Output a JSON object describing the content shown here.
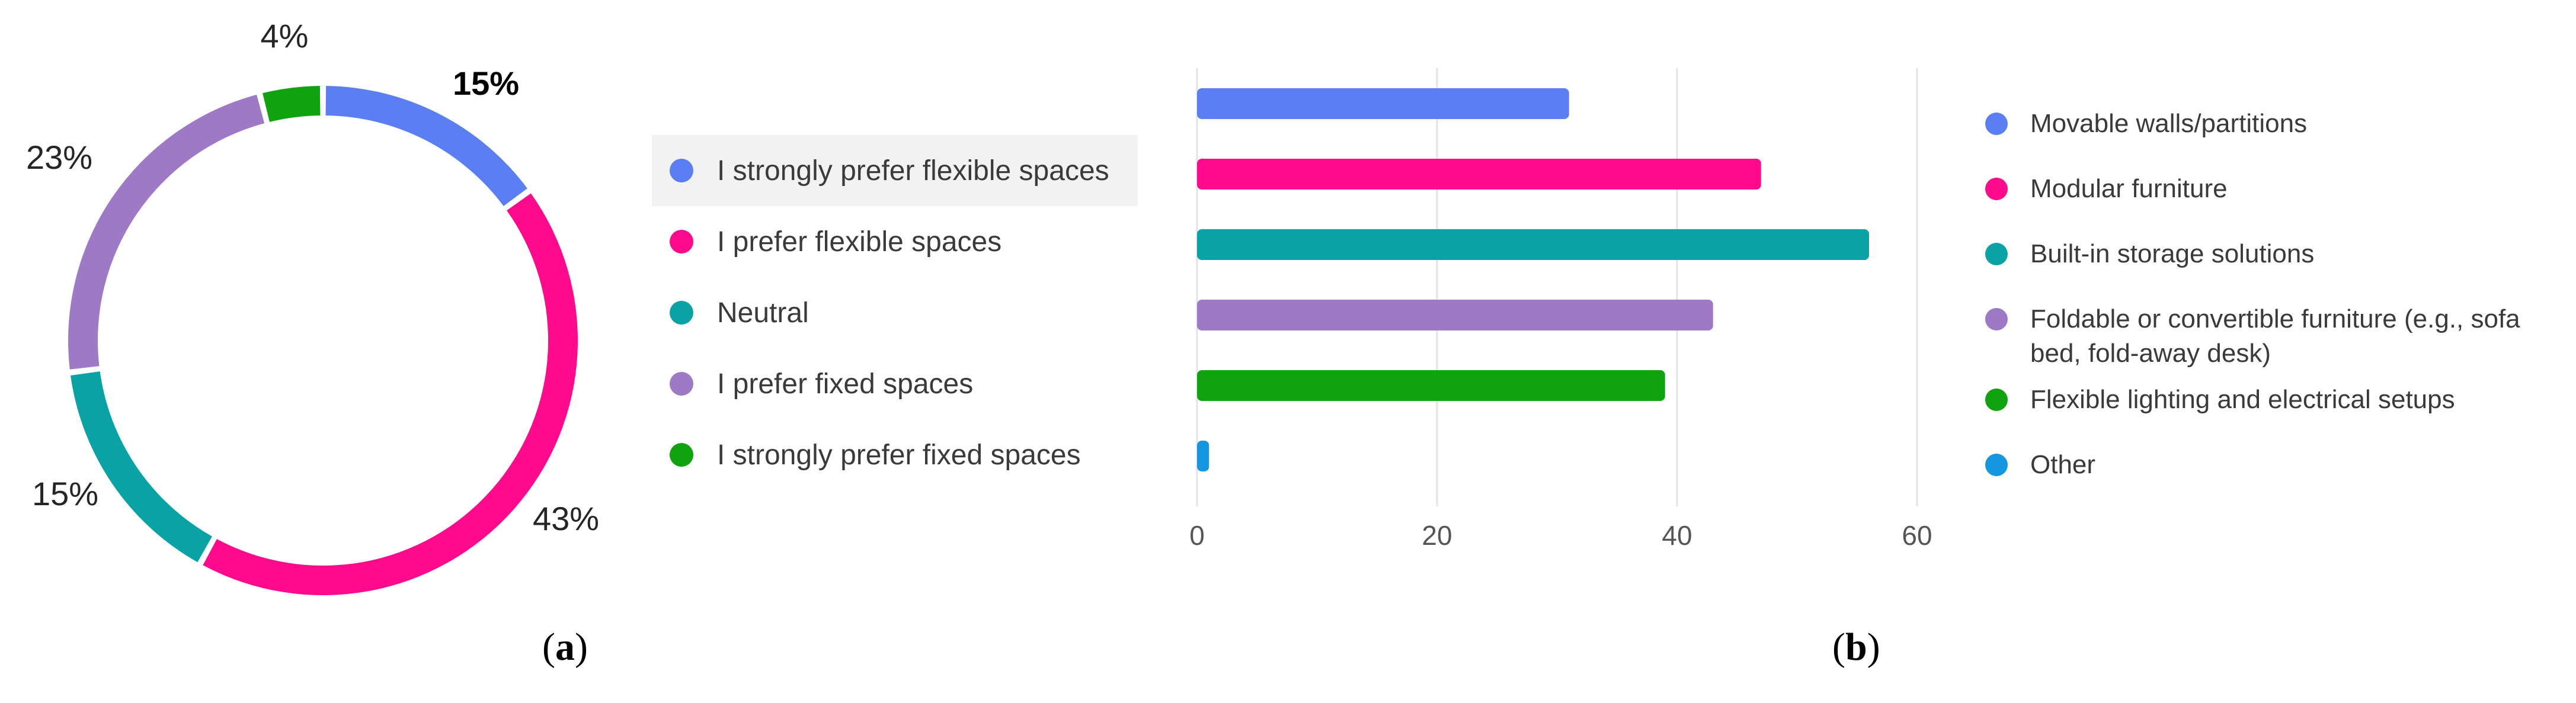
{
  "chart_data": [
    {
      "type": "pie",
      "donut": true,
      "slices": [
        {
          "label": "I strongly prefer flexible spaces",
          "value": 15,
          "display": "15%",
          "color": "#5b7ff2",
          "bold": true
        },
        {
          "label": "I prefer flexible spaces",
          "value": 43,
          "display": "43%",
          "color": "#ff0a8c",
          "bold": false
        },
        {
          "label": "Neutral",
          "value": 15,
          "display": "15%",
          "color": "#0aa3a5",
          "bold": false
        },
        {
          "label": "I prefer fixed spaces",
          "value": 23,
          "display": "23%",
          "color": "#9e79c6",
          "bold": false
        },
        {
          "label": "I strongly prefer fixed spaces",
          "value": 4,
          "display": "4%",
          "color": "#0fa30f",
          "bold": false
        }
      ],
      "legend_placement": "right",
      "caption": "(a)"
    },
    {
      "type": "bar",
      "orientation": "horizontal",
      "categories": [
        "Movable walls/partitions",
        "Modular furniture",
        "Built-in storage solutions",
        "Foldable or convertible furniture (e.g., sofa bed, fold-away desk)",
        "Flexible lighting and electrical setups",
        "Other"
      ],
      "values": [
        31,
        47,
        56,
        43,
        39,
        1
      ],
      "colors": [
        "#5b7ff2",
        "#ff0a8c",
        "#0aa3a5",
        "#9e79c6",
        "#0fa30f",
        "#1596e0"
      ],
      "xlim": [
        0,
        60
      ],
      "xticks": [
        0,
        20,
        40,
        60
      ],
      "grid": true,
      "legend_placement": "right",
      "caption": "(b)"
    }
  ],
  "legend_a": {
    "items": [
      {
        "label": "I strongly prefer flexible spaces",
        "color": "#5b7ff2"
      },
      {
        "label": "I prefer flexible spaces",
        "color": "#ff0a8c"
      },
      {
        "label": "Neutral",
        "color": "#0aa3a5"
      },
      {
        "label": "I prefer fixed spaces",
        "color": "#9e79c6"
      },
      {
        "label": "I strongly prefer fixed spaces",
        "color": "#0fa30f"
      }
    ]
  },
  "legend_b": {
    "items": [
      {
        "line1": "Movable walls/partitions",
        "line2": "",
        "color": "#5b7ff2"
      },
      {
        "line1": "Modular furniture",
        "line2": "",
        "color": "#ff0a8c"
      },
      {
        "line1": "Built-in storage solutions",
        "line2": "",
        "color": "#0aa3a5"
      },
      {
        "line1": "Foldable or convertible furniture (e.g., sofa",
        "line2": "bed, fold-away desk)",
        "color": "#9e79c6"
      },
      {
        "line1": "Flexible lighting and electrical setups",
        "line2": "",
        "color": "#0fa30f"
      },
      {
        "line1": "Other",
        "line2": "",
        "color": "#1596e0"
      }
    ]
  },
  "captions": {
    "a": "a",
    "b": "b"
  }
}
